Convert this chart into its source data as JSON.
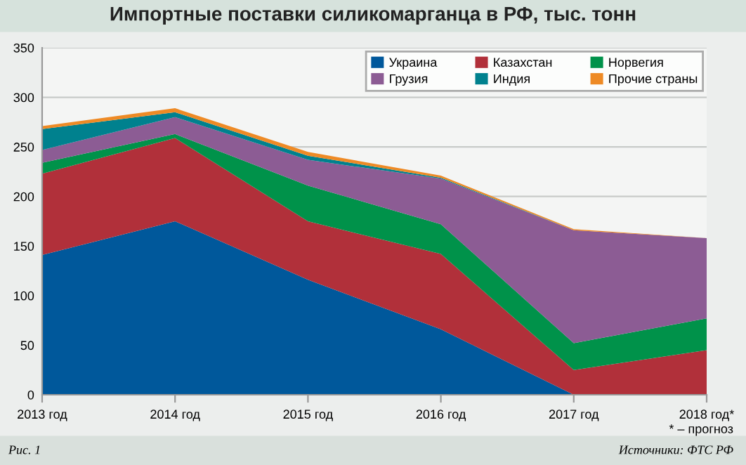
{
  "chart_data": {
    "type": "area",
    "stacked": true,
    "title": "Импортные поставки силикомарганца в РФ, тыс. тонн",
    "categories": [
      "2013 год",
      "2014 год",
      "2015 год",
      "2016 год",
      "2017 год",
      "2018 год*"
    ],
    "series": [
      {
        "name": "Украина",
        "color": "#00589b",
        "values": [
          141,
          175,
          116,
          66,
          0,
          0
        ]
      },
      {
        "name": "Казахстан",
        "color": "#b1303a",
        "values": [
          82,
          84,
          59,
          76,
          25,
          45
        ]
      },
      {
        "name": "Норвегия",
        "color": "#00924a",
        "values": [
          11,
          4,
          36,
          30,
          27,
          32
        ]
      },
      {
        "name": "Грузия",
        "color": "#8c5c94",
        "values": [
          13,
          17,
          26,
          46,
          114,
          81
        ]
      },
      {
        "name": "Индия",
        "color": "#00818e",
        "values": [
          21,
          5,
          4,
          1,
          0,
          0
        ]
      },
      {
        "name": "Прочие страны",
        "color": "#ee8a25",
        "values": [
          3,
          4,
          4,
          2,
          1,
          0
        ]
      }
    ],
    "ylim": [
      0,
      350
    ],
    "yticks": [
      0,
      50,
      100,
      150,
      200,
      250,
      300,
      350
    ],
    "grid": "y",
    "legend": "top right",
    "annotations": [
      "* – прогноз",
      "Рис. 1",
      "Источники: ФТС РФ"
    ]
  }
}
